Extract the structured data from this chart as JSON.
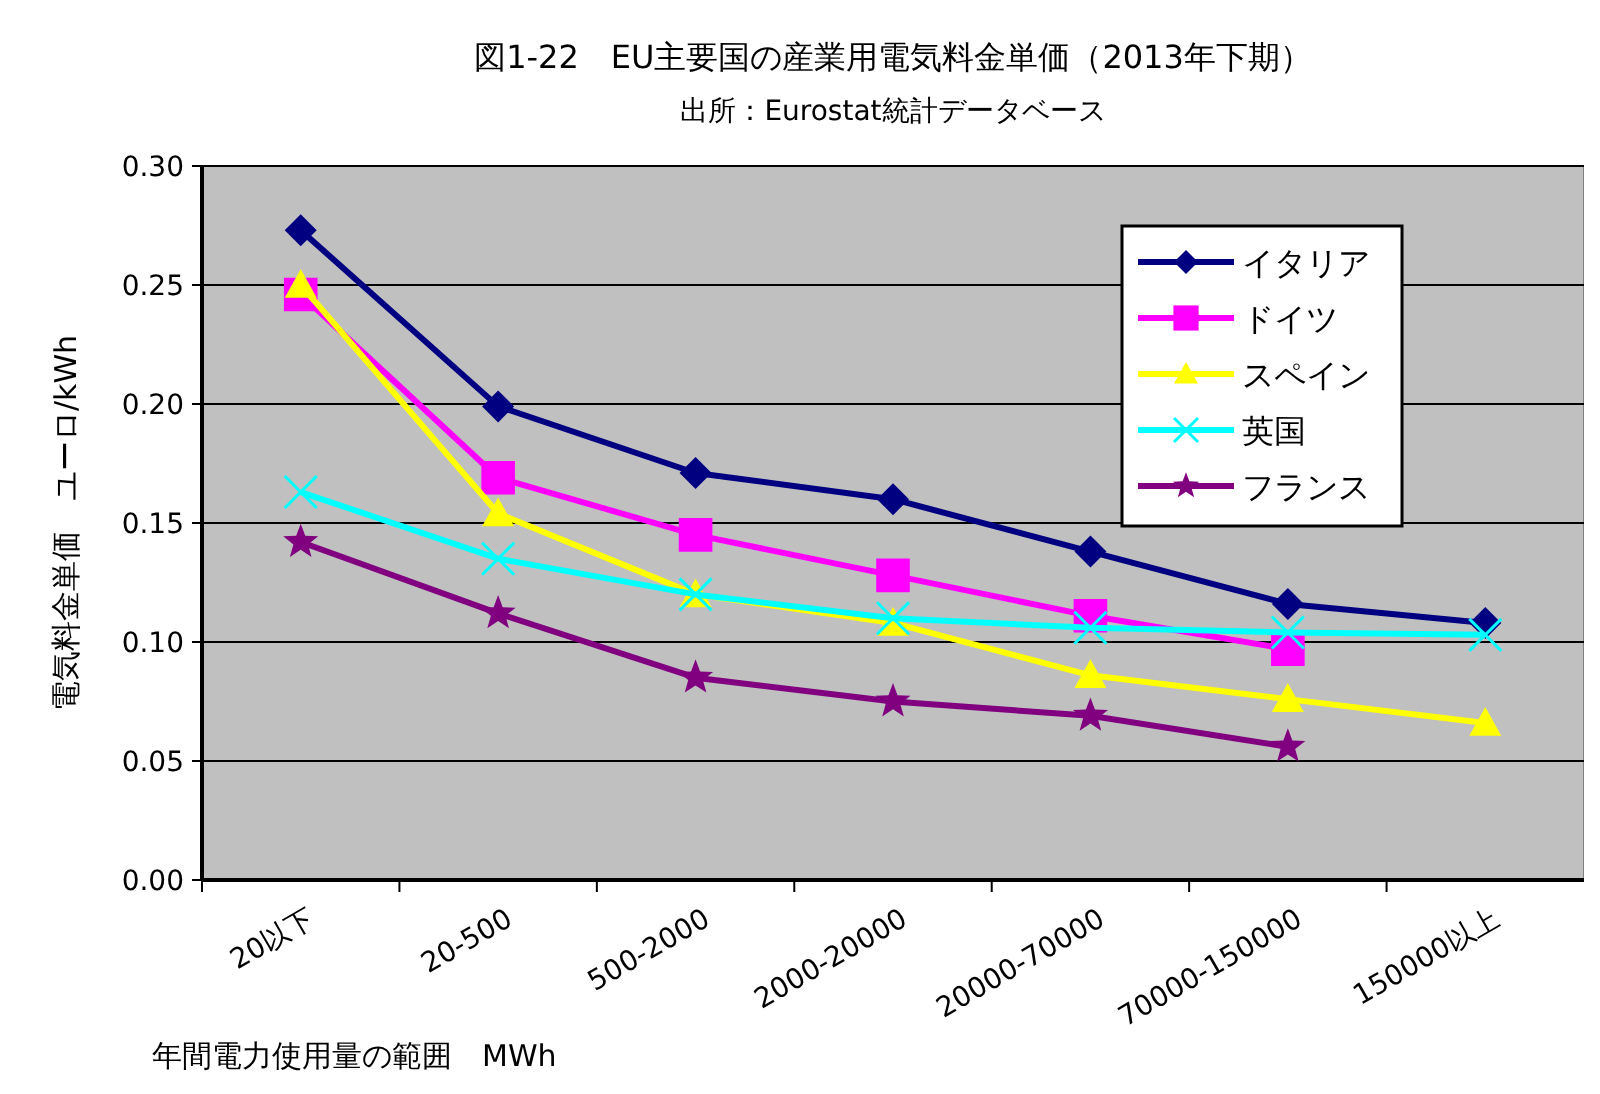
{
  "chart_data": {
    "type": "line",
    "title": "図1-22　EU主要国の産業用電気料金単価（2013年下期）",
    "subtitle": "出所：Eurostat統計データベース",
    "xlabel": "年間電力使用量の範囲　MWh",
    "ylabel": "電気料金単価　ユーロ/kWh",
    "categories": [
      "20以下",
      "20-500",
      "500-2000",
      "2000-20000",
      "20000-70000",
      "70000-150000",
      "150000以上"
    ],
    "ylim": [
      0,
      0.3
    ],
    "yticks": [
      {
        "value": 0,
        "label": "0.00"
      },
      {
        "value": 0.05,
        "label": "0.05"
      },
      {
        "value": 0.1,
        "label": "0.10"
      },
      {
        "value": 0.15,
        "label": "0.15"
      },
      {
        "value": 0.2,
        "label": "0.20"
      },
      {
        "value": 0.25,
        "label": "0.25"
      },
      {
        "value": 0.3,
        "label": "0.30"
      }
    ],
    "grid": "y",
    "legend": "top right",
    "series": [
      {
        "name": "イタリア",
        "color": "#000080",
        "marker": "diamond",
        "values": [
          0.273,
          0.199,
          0.171,
          0.16,
          0.138,
          0.116,
          0.108
        ]
      },
      {
        "name": "ドイツ",
        "color": "#ff00ff",
        "marker": "square",
        "values": [
          0.246,
          0.169,
          0.145,
          0.128,
          0.111,
          0.097,
          null
        ]
      },
      {
        "name": "スペイン",
        "color": "#ffff00",
        "marker": "triangle",
        "values": [
          0.25,
          0.154,
          0.12,
          0.108,
          0.086,
          0.076,
          0.066
        ]
      },
      {
        "name": "英国",
        "color": "#00ffff",
        "marker": "cross",
        "values": [
          0.163,
          0.135,
          0.12,
          0.11,
          0.106,
          0.104,
          0.103
        ]
      },
      {
        "name": "フランス",
        "color": "#800080",
        "marker": "star",
        "values": [
          0.142,
          0.112,
          0.085,
          0.075,
          0.069,
          0.056,
          null
        ]
      }
    ]
  }
}
